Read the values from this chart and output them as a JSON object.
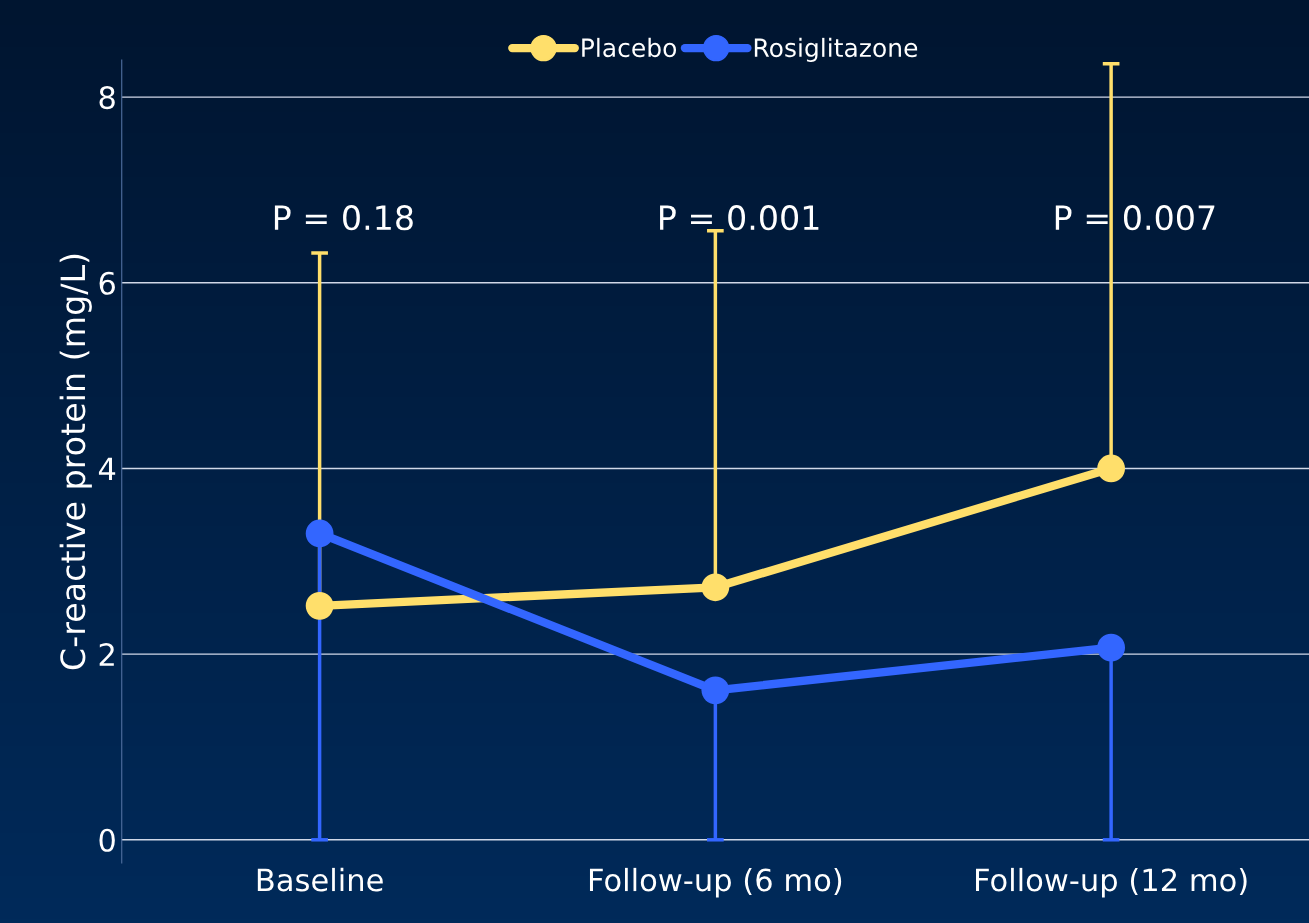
{
  "chart_data": {
    "type": "line",
    "ylabel": "C-reactive protein (mg/L)",
    "categories": [
      "Baseline",
      "Follow-up (6 mo)",
      "Follow-up (12 mo)"
    ],
    "series": [
      {
        "name": "Placebo",
        "color": "#ffdf6b",
        "values": [
          2.52,
          2.72,
          4.0
        ],
        "errors": [
          [
            2.52,
            6.32
          ],
          [
            2.72,
            6.56
          ],
          [
            4.0,
            8.36
          ]
        ]
      },
      {
        "name": "Rosiglitazone",
        "color": "#3366ff",
        "values": [
          3.3,
          1.61,
          2.07
        ],
        "errors": [
          [
            0,
            3.3
          ],
          [
            0,
            1.61
          ],
          [
            0,
            2.07
          ]
        ]
      }
    ],
    "ylim": [
      -0.25,
      8.4
    ],
    "yticks": [
      0,
      2,
      4,
      6,
      8
    ],
    "grid": "y",
    "legend": "top",
    "marker": "circle",
    "line_style": "solid",
    "annotations": [
      "P = 0.18",
      "P = 0.001",
      "P = 0.007"
    ]
  }
}
